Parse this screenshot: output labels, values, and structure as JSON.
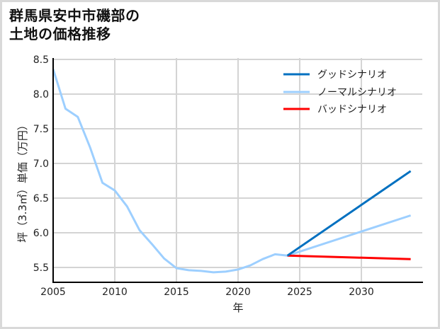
{
  "title_lines": [
    "群馬県安中市磯部の",
    "土地の価格推移"
  ],
  "chart_data": {
    "type": "line",
    "title": "群馬県安中市磯部の土地の価格推移",
    "xlabel": "年",
    "ylabel": "坪（3.3㎡）単価（万円）",
    "xlim": [
      2005,
      2034
    ],
    "ylim": [
      5.29,
      8.52
    ],
    "xticks": [
      2005,
      2010,
      2015,
      2020,
      2025,
      2030
    ],
    "yticks": [
      5.5,
      6.0,
      6.5,
      7.0,
      7.5,
      8.0,
      8.5
    ],
    "xtick_labels": [
      "2005",
      "2010",
      "2015",
      "2020",
      "2025",
      "2030"
    ],
    "ytick_labels": [
      "5.5",
      "6.0",
      "6.5",
      "7.0",
      "7.5",
      "8.0",
      "8.5"
    ],
    "grid": true,
    "legend_position": "upper right",
    "series": [
      {
        "name": "グッドシナリオ",
        "color": "#0070c0",
        "x": [
          2024,
          2034
        ],
        "values": [
          5.67,
          6.89
        ]
      },
      {
        "name": "ノーマルシナリオ",
        "color": "#9dcfff",
        "x": [
          2005,
          2006,
          2007,
          2008,
          2009,
          2010,
          2011,
          2012,
          2013,
          2014,
          2015,
          2016,
          2017,
          2018,
          2019,
          2020,
          2021,
          2022,
          2023,
          2024,
          2034
        ],
        "values": [
          8.36,
          7.79,
          7.67,
          7.23,
          6.72,
          6.61,
          6.38,
          6.04,
          5.84,
          5.63,
          5.49,
          5.46,
          5.45,
          5.43,
          5.44,
          5.47,
          5.53,
          5.62,
          5.69,
          5.67,
          6.25
        ]
      },
      {
        "name": "バッドシナリオ",
        "color": "#ff0000",
        "x": [
          2024,
          2034
        ],
        "values": [
          5.67,
          5.62
        ]
      }
    ]
  }
}
